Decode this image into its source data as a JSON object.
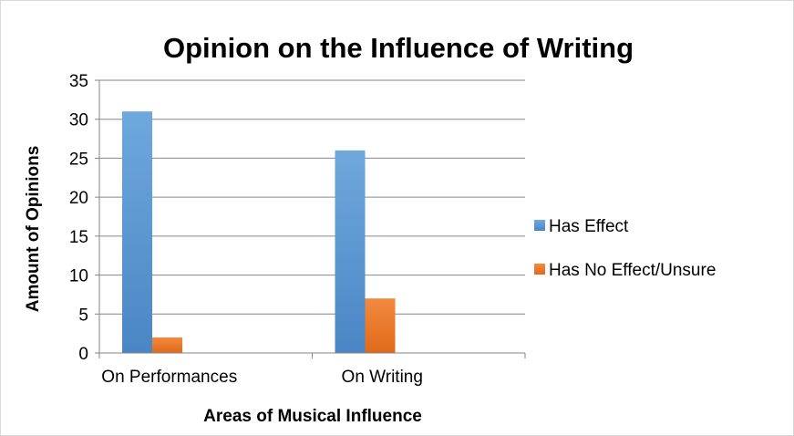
{
  "colors": {
    "has_effect": "#5B9BD5",
    "has_effect_dark": "#4A86C5",
    "has_no_effect": "#ED7D31",
    "has_no_effect_dark": "#E06A1A",
    "gridline": "#868686",
    "axis": "#868686"
  },
  "chart_data": {
    "type": "bar",
    "title": "Opinion on the Influence of Writing",
    "xlabel": "Areas of Musical Influence",
    "ylabel": "Amount of Opinions",
    "categories": [
      "On Performances",
      "On Writing"
    ],
    "series": [
      {
        "name": "Has Effect",
        "values": [
          31,
          26
        ]
      },
      {
        "name": "Has No Effect/Unsure",
        "values": [
          2,
          7
        ]
      }
    ],
    "ylim": [
      0,
      35
    ],
    "yticks": [
      0,
      5,
      10,
      15,
      20,
      25,
      30,
      35
    ],
    "grid": true,
    "legend_position": "right"
  }
}
